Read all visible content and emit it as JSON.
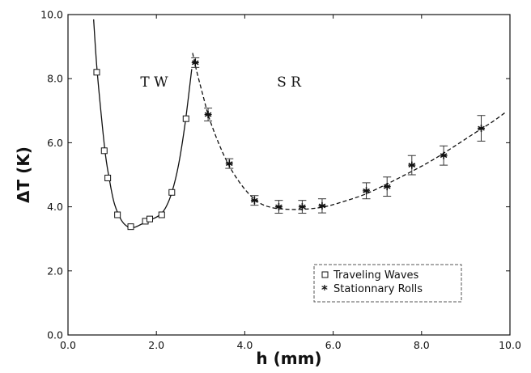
{
  "chart_data": {
    "type": "scatter",
    "xlabel": "h (mm)",
    "ylabel": "ΔT (K)",
    "xlim": [
      0.0,
      10.0
    ],
    "ylim": [
      0.0,
      10.0
    ],
    "x_ticks": [
      "0.0",
      "2.0",
      "4.0",
      "6.0",
      "8.0",
      "10.0"
    ],
    "y_ticks": [
      "0.0",
      "2.0",
      "4.0",
      "6.0",
      "8.0",
      "10.0"
    ],
    "annotations": [
      {
        "text": "T W",
        "x": 1.95,
        "y": 7.75
      },
      {
        "text": "S R",
        "x": 5.0,
        "y": 7.75
      }
    ],
    "legend": {
      "placement": "bottom-right",
      "entries": [
        "Traveling Waves",
        "Stationnary Rolls"
      ]
    },
    "series": [
      {
        "name": "Traveling Waves",
        "marker": "open-square",
        "points": [
          {
            "x": 0.65,
            "y": 8.2
          },
          {
            "x": 0.82,
            "y": 5.75
          },
          {
            "x": 0.9,
            "y": 4.9
          },
          {
            "x": 1.12,
            "y": 3.75
          },
          {
            "x": 1.42,
            "y": 3.38
          },
          {
            "x": 1.75,
            "y": 3.55
          },
          {
            "x": 1.85,
            "y": 3.62
          },
          {
            "x": 2.12,
            "y": 3.75
          },
          {
            "x": 2.35,
            "y": 4.45
          },
          {
            "x": 2.67,
            "y": 6.75
          }
        ]
      },
      {
        "name": "Stationnary Rolls",
        "marker": "asterisk",
        "points": [
          {
            "x": 2.88,
            "y": 8.5,
            "err": 0.15
          },
          {
            "x": 3.17,
            "y": 6.88,
            "err": 0.2
          },
          {
            "x": 3.65,
            "y": 5.35,
            "err": 0.15
          },
          {
            "x": 4.22,
            "y": 4.2,
            "err": 0.15
          },
          {
            "x": 4.77,
            "y": 4.0,
            "err": 0.2
          },
          {
            "x": 5.3,
            "y": 4.0,
            "err": 0.2
          },
          {
            "x": 5.75,
            "y": 4.03,
            "err": 0.22
          },
          {
            "x": 6.75,
            "y": 4.5,
            "err": 0.25
          },
          {
            "x": 7.22,
            "y": 4.63,
            "err": 0.3
          },
          {
            "x": 7.78,
            "y": 5.3,
            "err": 0.3
          },
          {
            "x": 8.5,
            "y": 5.6,
            "err": 0.3
          },
          {
            "x": 9.35,
            "y": 6.45,
            "err": 0.4
          }
        ]
      }
    ],
    "fit_curves": [
      {
        "style": "solid",
        "points": [
          [
            0.58,
            9.85
          ],
          [
            0.65,
            8.4
          ],
          [
            0.75,
            6.9
          ],
          [
            0.85,
            5.6
          ],
          [
            0.95,
            4.75
          ],
          [
            1.05,
            4.1
          ],
          [
            1.2,
            3.6
          ],
          [
            1.35,
            3.38
          ],
          [
            1.5,
            3.36
          ],
          [
            1.65,
            3.45
          ],
          [
            1.85,
            3.58
          ],
          [
            2.05,
            3.72
          ],
          [
            2.2,
            3.95
          ],
          [
            2.35,
            4.45
          ],
          [
            2.5,
            5.3
          ],
          [
            2.65,
            6.6
          ],
          [
            2.8,
            8.3
          ]
        ]
      },
      {
        "style": "dashed",
        "points": [
          [
            2.82,
            8.8
          ],
          [
            2.9,
            8.3
          ],
          [
            3.05,
            7.5
          ],
          [
            3.2,
            6.75
          ],
          [
            3.45,
            5.85
          ],
          [
            3.7,
            5.15
          ],
          [
            4.0,
            4.55
          ],
          [
            4.3,
            4.15
          ],
          [
            4.6,
            3.98
          ],
          [
            5.0,
            3.92
          ],
          [
            5.4,
            3.93
          ],
          [
            5.8,
            4.0
          ],
          [
            6.2,
            4.15
          ],
          [
            6.7,
            4.38
          ],
          [
            7.2,
            4.7
          ],
          [
            7.7,
            5.05
          ],
          [
            8.2,
            5.42
          ],
          [
            8.7,
            5.85
          ],
          [
            9.2,
            6.3
          ],
          [
            9.6,
            6.65
          ],
          [
            9.9,
            6.95
          ]
        ]
      }
    ]
  }
}
